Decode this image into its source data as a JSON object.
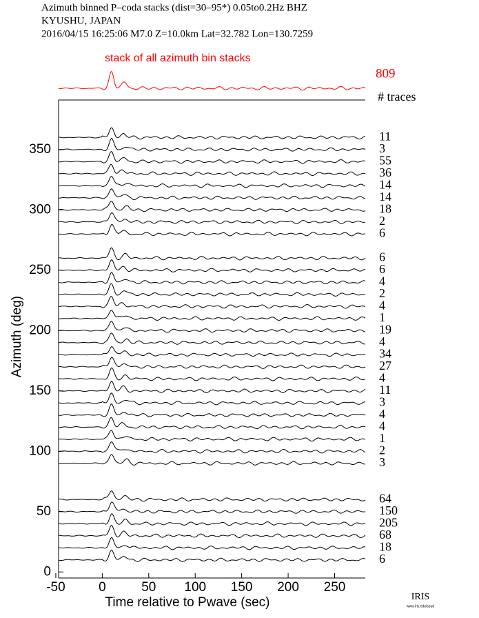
{
  "chart_data": {
    "type": "azimuth-stack",
    "header": [
      "Azimuth binned P–coda stacks (dist=30–95*)  0.05to0.2Hz  BHZ",
      "KYUSHU, JAPAN",
      "2016/04/15  16:25:06  M7.0  Z=10.0km Lat=32.782 Lon=130.7259"
    ],
    "stack_title": "stack of all azimuth bin stacks",
    "stack_count": 809,
    "count_heading": "# traces",
    "x_label": "Time relative to Pwave (sec)",
    "y_label": "Azimuth (deg)",
    "xlim": [
      -47,
      283
    ],
    "xticks": [
      -50,
      0,
      50,
      100,
      150,
      200,
      250
    ],
    "ylim": [
      -5,
      391
    ],
    "yticks": [
      0,
      50,
      100,
      150,
      200,
      250,
      300,
      350
    ],
    "color": "#000000",
    "stack_color": "#ff0000",
    "azimuths": [
      360,
      350,
      340,
      330,
      320,
      310,
      300,
      290,
      280,
      260,
      250,
      240,
      230,
      220,
      210,
      200,
      190,
      180,
      170,
      160,
      150,
      140,
      130,
      120,
      110,
      100,
      90,
      60,
      50,
      40,
      30,
      20,
      10
    ],
    "trace_counts": [
      11,
      3,
      55,
      36,
      14,
      14,
      18,
      2,
      6,
      6,
      6,
      4,
      2,
      4,
      1,
      19,
      4,
      34,
      27,
      4,
      11,
      3,
      4,
      4,
      1,
      2,
      3,
      64,
      150,
      205,
      68,
      18,
      6
    ],
    "logo": "IRIS",
    "logo_url": "www.iris.edu/spud"
  }
}
